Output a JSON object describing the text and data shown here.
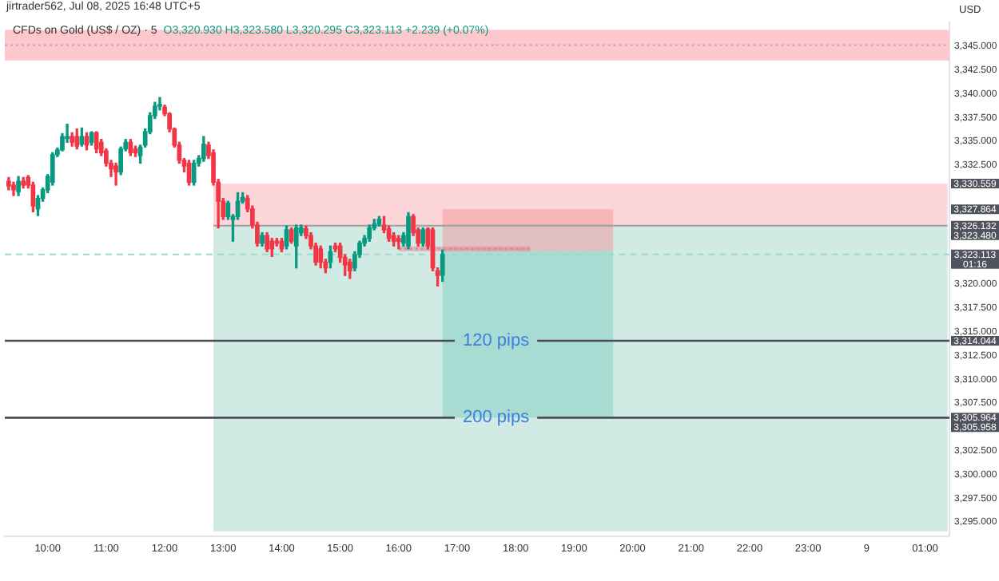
{
  "chart_data": {
    "type": "candlestick",
    "title": "CFDs on Gold (US$ / OZ) · 5",
    "subtitle": "jirtrader562, Jul 08, 2025 16:48 UTC+5",
    "ylabel": "USD",
    "annotations": [
      "O3,320.930 H3,323.580 L3,320.295 C3,323.113 +2.239 (+0.07%)",
      {
        "text": "3,330.559",
        "x": "2025-07-09T01:23",
        "y": 3330.559
      },
      {
        "text": "3,327.864",
        "x": "2025-07-09T01:25",
        "y": 3327.864
      },
      {
        "text": "3,326.132",
        "x": "2025-07-09T01:23",
        "y": 3326.132
      },
      "3,323.480",
      {
        "text": "3,323.113",
        "x": "2025-07-09T01:25",
        "y": 3323.113
      },
      "01:16",
      {
        "text": "3,314.044",
        "x": "2025-07-09T01:25",
        "y": 3314.044
      },
      {
        "text": "3,305.964",
        "x": "2025-07-09T01:25",
        "y": 3305.964
      },
      "3,305.958"
    ],
    "x": [
      "2025-07-08T09:20",
      "2025-07-08T09:25",
      "2025-07-08T09:30",
      "2025-07-08T09:35",
      "2025-07-08T09:40",
      "2025-07-08T09:45",
      "2025-07-08T09:50",
      "2025-07-08T09:55",
      "2025-07-08T10:00",
      "2025-07-08T10:05",
      "2025-07-08T10:10",
      "2025-07-08T10:15",
      "2025-07-08T10:20",
      "2025-07-08T10:25",
      "2025-07-08T10:30",
      "2025-07-08T10:35",
      "2025-07-08T10:40",
      "2025-07-08T10:45",
      "2025-07-08T10:50",
      "2025-07-08T10:55",
      "2025-07-08T11:00",
      "2025-07-08T11:05",
      "2025-07-08T11:10",
      "2025-07-08T11:15",
      "2025-07-08T11:20",
      "2025-07-08T11:25",
      "2025-07-08T11:30",
      "2025-07-08T11:35",
      "2025-07-08T11:40",
      "2025-07-08T11:45",
      "2025-07-08T11:50",
      "2025-07-08T11:55",
      "2025-07-08T12:00",
      "2025-07-08T12:05",
      "2025-07-08T12:10",
      "2025-07-08T12:15",
      "2025-07-08T12:20",
      "2025-07-08T12:25",
      "2025-07-08T12:30",
      "2025-07-08T12:35",
      "2025-07-08T12:40",
      "2025-07-08T12:45",
      "2025-07-08T12:50",
      "2025-07-08T12:55",
      "2025-07-08T13:00",
      "2025-07-08T13:05",
      "2025-07-08T13:10",
      "2025-07-08T13:15",
      "2025-07-08T13:20",
      "2025-07-08T13:25",
      "2025-07-08T13:30",
      "2025-07-08T13:35",
      "2025-07-08T13:40",
      "2025-07-08T13:45",
      "2025-07-08T13:50",
      "2025-07-08T13:55",
      "2025-07-08T14:00",
      "2025-07-08T14:05",
      "2025-07-08T14:10",
      "2025-07-08T14:15",
      "2025-07-08T14:20",
      "2025-07-08T14:25",
      "2025-07-08T14:30",
      "2025-07-08T14:35",
      "2025-07-08T14:40",
      "2025-07-08T14:45",
      "2025-07-08T14:50",
      "2025-07-08T14:55",
      "2025-07-08T15:00",
      "2025-07-08T15:05",
      "2025-07-08T15:10",
      "2025-07-08T15:15",
      "2025-07-08T15:20",
      "2025-07-08T15:25",
      "2025-07-08T15:30",
      "2025-07-08T15:35",
      "2025-07-08T15:40",
      "2025-07-08T15:45",
      "2025-07-08T15:50",
      "2025-07-08T15:55",
      "2025-07-08T16:00",
      "2025-07-08T16:05",
      "2025-07-08T16:10",
      "2025-07-08T16:15",
      "2025-07-08T16:20",
      "2025-07-08T16:25",
      "2025-07-08T16:30",
      "2025-07-08T16:35",
      "2025-07-08T16:40",
      "2025-07-08T16:45"
    ],
    "ohlc": [
      [
        3330.8,
        3331.2,
        3329.9,
        3330.3
      ],
      [
        3330.4,
        3330.7,
        3329.3,
        3329.9
      ],
      [
        3329.7,
        3331.3,
        3329.3,
        3330.8
      ],
      [
        3330.8,
        3331.2,
        3330.1,
        3330.4
      ],
      [
        3331.2,
        3331.4,
        3330.1,
        3330.4
      ],
      [
        3330.4,
        3330.7,
        3327.6,
        3328.2
      ],
      [
        3327.9,
        3329.3,
        3327.2,
        3329.0
      ],
      [
        3329.0,
        3330.1,
        3328.7,
        3329.9
      ],
      [
        3329.9,
        3331.5,
        3329.6,
        3331.3
      ],
      [
        3330.7,
        3333.8,
        3330.4,
        3333.6
      ],
      [
        3333.6,
        3334.3,
        3333.4,
        3334.1
      ],
      [
        3334.1,
        3335.8,
        3334.0,
        3335.5
      ],
      [
        3335.3,
        3336.8,
        3334.9,
        3335.5
      ],
      [
        3335.5,
        3335.9,
        3334.5,
        3334.9
      ],
      [
        3335.5,
        3336.3,
        3334.2,
        3334.5
      ],
      [
        3334.7,
        3336.4,
        3334.5,
        3335.5
      ],
      [
        3335.5,
        3335.9,
        3334.1,
        3334.6
      ],
      [
        3334.9,
        3336.0,
        3334.6,
        3335.9
      ],
      [
        3335.9,
        3336.0,
        3333.8,
        3334.2
      ],
      [
        3334.9,
        3335.2,
        3333.5,
        3333.8
      ],
      [
        3334.0,
        3334.2,
        3332.4,
        3332.7
      ],
      [
        3332.7,
        3333.0,
        3331.3,
        3332.1
      ],
      [
        3332.4,
        3332.7,
        3330.4,
        3331.8
      ],
      [
        3331.8,
        3334.4,
        3331.5,
        3334.2
      ],
      [
        3334.2,
        3335.2,
        3334.0,
        3334.9
      ],
      [
        3334.9,
        3335.2,
        3333.5,
        3333.8
      ],
      [
        3334.2,
        3334.5,
        3333.4,
        3333.8
      ],
      [
        3333.5,
        3334.6,
        3332.7,
        3334.4
      ],
      [
        3334.6,
        3336.3,
        3334.4,
        3336.0
      ],
      [
        3336.0,
        3338.0,
        3335.8,
        3337.7
      ],
      [
        3337.7,
        3339.1,
        3337.4,
        3338.7
      ],
      [
        3338.7,
        3339.6,
        3338.3,
        3338.8
      ],
      [
        3338.6,
        3338.8,
        3337.7,
        3337.9
      ],
      [
        3337.9,
        3338.0,
        3336.0,
        3336.3
      ],
      [
        3336.3,
        3336.4,
        3334.4,
        3334.6
      ],
      [
        3334.6,
        3334.9,
        3332.7,
        3333.0
      ],
      [
        3333.0,
        3333.2,
        3331.8,
        3332.4
      ],
      [
        3332.7,
        3333.0,
        3330.4,
        3330.7
      ],
      [
        3330.7,
        3333.0,
        3330.4,
        3332.7
      ],
      [
        3332.7,
        3333.5,
        3332.4,
        3333.2
      ],
      [
        3333.2,
        3335.5,
        3332.9,
        3334.7
      ],
      [
        3334.6,
        3334.9,
        3333.2,
        3333.5
      ],
      [
        3333.8,
        3334.1,
        3330.4,
        3330.7
      ],
      [
        3330.7,
        3331.0,
        3325.9,
        3328.7
      ],
      [
        3328.7,
        3329.0,
        3326.8,
        3327.1
      ],
      [
        3327.1,
        3328.7,
        3326.8,
        3328.5
      ],
      [
        3326.8,
        3327.3,
        3324.5,
        3327.1
      ],
      [
        3327.1,
        3329.6,
        3326.8,
        3328.7
      ],
      [
        3328.7,
        3329.6,
        3328.5,
        3329.1
      ],
      [
        3329.0,
        3329.3,
        3327.6,
        3327.9
      ],
      [
        3327.9,
        3328.2,
        3325.9,
        3326.2
      ],
      [
        3326.2,
        3326.5,
        3324.0,
        3324.3
      ],
      [
        3324.3,
        3325.4,
        3324.0,
        3325.1
      ],
      [
        3325.1,
        3325.4,
        3323.4,
        3323.7
      ],
      [
        3324.5,
        3324.8,
        3322.9,
        3323.7
      ],
      [
        3324.5,
        3324.8,
        3324.0,
        3324.3
      ],
      [
        3324.5,
        3324.8,
        3323.4,
        3323.7
      ],
      [
        3324.0,
        3326.1,
        3323.7,
        3325.7
      ],
      [
        3325.7,
        3325.9,
        3324.3,
        3324.5
      ],
      [
        3324.0,
        3326.2,
        3321.7,
        3325.9
      ],
      [
        3325.4,
        3326.2,
        3325.1,
        3325.9
      ],
      [
        3325.8,
        3326.1,
        3324.8,
        3325.1
      ],
      [
        3325.1,
        3325.4,
        3323.7,
        3324.0
      ],
      [
        3324.0,
        3324.3,
        3322.0,
        3322.3
      ],
      [
        3323.7,
        3324.0,
        3321.7,
        3322.3
      ],
      [
        3322.3,
        3322.6,
        3321.2,
        3321.7
      ],
      [
        3322.3,
        3324.0,
        3321.7,
        3323.4
      ],
      [
        3324.0,
        3324.3,
        3323.4,
        3323.7
      ],
      [
        3324.0,
        3324.3,
        3322.3,
        3322.8
      ],
      [
        3322.8,
        3323.1,
        3320.9,
        3322.0
      ],
      [
        3322.3,
        3322.6,
        3320.6,
        3321.4
      ],
      [
        3321.7,
        3323.4,
        3321.4,
        3323.1
      ],
      [
        3323.1,
        3324.5,
        3322.8,
        3324.3
      ],
      [
        3324.3,
        3325.1,
        3324.0,
        3324.8
      ],
      [
        3324.8,
        3326.2,
        3324.5,
        3325.9
      ],
      [
        3325.9,
        3326.8,
        3325.7,
        3326.3
      ],
      [
        3326.3,
        3327.1,
        3326.1,
        3326.8
      ],
      [
        3326.2,
        3327.1,
        3325.4,
        3325.7
      ],
      [
        3325.8,
        3326.1,
        3324.5,
        3324.8
      ],
      [
        3325.1,
        3325.4,
        3324.0,
        3324.5
      ],
      [
        3324.8,
        3325.1,
        3323.7,
        3324.5
      ],
      [
        3324.3,
        3325.4,
        3324.0,
        3325.1
      ],
      [
        3324.0,
        3327.5,
        3323.7,
        3327.1
      ],
      [
        3327.1,
        3327.3,
        3325.1,
        3325.4
      ],
      [
        3325.7,
        3325.9,
        3324.0,
        3324.3
      ],
      [
        3324.3,
        3325.9,
        3324.0,
        3325.7
      ],
      [
        3325.8,
        3325.9,
        3323.7,
        3324.0
      ],
      [
        3325.7,
        3325.9,
        3321.4,
        3321.7
      ],
      [
        3321.4,
        3321.7,
        3319.8,
        3320.9
      ],
      [
        3320.93,
        3323.58,
        3320.295,
        3323.113
      ]
    ],
    "series": [
      {
        "type": "line",
        "color": "#f9adb3",
        "x": [
          "2025-07-08T12:50",
          "2025-07-09T01:23"
        ],
        "values": [
          null,
          null
        ],
        "lower": [
          3326.132,
          3326.132
        ],
        "upper": [
          3330.559,
          3330.559
        ]
      },
      {
        "type": "line",
        "color": "#a3d7c9",
        "x": [
          "2025-07-08T12:50",
          "2025-07-09T01:23"
        ],
        "values": [
          null,
          null
        ],
        "lower": [
          3294.0,
          3294.0
        ],
        "upper": [
          3326.132,
          3326.132
        ]
      },
      {
        "type": "line",
        "color": "#9e9e9e",
        "x": [
          "2025-07-08T12:50",
          "2025-07-09T01:23"
        ],
        "values": [
          3326.132,
          3326.132
        ]
      },
      {
        "type": "line",
        "color": "#f2949b",
        "x": [
          "2025-07-08T16:45",
          "2025-07-08T19:40"
        ],
        "values": [
          null,
          null
        ],
        "lower": [
          3323.48,
          3323.48
        ],
        "upper": [
          3327.864,
          3327.864
        ]
      },
      {
        "type": "line",
        "color": "#7fcbbe",
        "x": [
          "2025-07-08T16:45",
          "2025-07-08T19:40"
        ],
        "values": [
          null,
          null
        ],
        "lower": [
          3305.964,
          3305.964
        ],
        "upper": [
          3323.48,
          3323.48
        ]
      },
      {
        "type": "line",
        "color": "#e57f92",
        "line_style": "dotted",
        "x": [
          "2025-07-08T16:00",
          "2025-07-08T18:15"
        ],
        "values": [
          3323.7,
          3323.7
        ],
        "lower": [
          3323.45,
          3323.45
        ],
        "upper": [
          3323.95,
          3323.95
        ]
      }
    ],
    "bands": [
      {
        "axis": "y",
        "from": 3343.5,
        "to": 3346.7,
        "color": "#fcc8cc"
      }
    ],
    "ref_lines": [
      {
        "axis": "y",
        "value": 3345.1,
        "color": "#e88fc0",
        "line_style": "dotted"
      },
      {
        "axis": "y",
        "value": 3323.113,
        "color": "#9fd8cc",
        "line_style": "dashed"
      },
      {
        "axis": "y",
        "value": 3314.044,
        "label": "120 pips",
        "color": "#4a4d57"
      },
      {
        "axis": "y",
        "value": 3305.964,
        "label": "200 pips",
        "color": "#4a4d57"
      }
    ],
    "xlim": [
      "2025-07-08T09:16",
      "2025-07-09T01:25"
    ],
    "xticks": [
      {
        "value": "2025-07-08T10:00",
        "label": "10:00"
      },
      {
        "value": "2025-07-08T11:00",
        "label": "11:00"
      },
      {
        "value": "2025-07-08T12:00",
        "label": "12:00"
      },
      {
        "value": "2025-07-08T13:00",
        "label": "13:00"
      },
      {
        "value": "2025-07-08T14:00",
        "label": "14:00"
      },
      {
        "value": "2025-07-08T15:00",
        "label": "15:00"
      },
      {
        "value": "2025-07-08T16:00",
        "label": "16:00"
      },
      {
        "value": "2025-07-08T17:00",
        "label": "17:00"
      },
      {
        "value": "2025-07-08T18:00",
        "label": "18:00"
      },
      {
        "value": "2025-07-08T19:00",
        "label": "19:00"
      },
      {
        "value": "2025-07-08T20:00",
        "label": "20:00"
      },
      {
        "value": "2025-07-08T21:00",
        "label": "21:00"
      },
      {
        "value": "2025-07-08T22:00",
        "label": "22:00"
      },
      {
        "value": "2025-07-08T23:00",
        "label": "23:00"
      },
      {
        "value": "2025-07-09T00:00",
        "label": "9"
      },
      {
        "value": "2025-07-09T01:00",
        "label": "01:00"
      }
    ],
    "ylim": [
      3293.5,
      3347.5
    ],
    "yticks": [
      {
        "value": 3295,
        "label": "3,295.000"
      },
      {
        "value": 3297.5,
        "label": "3,297.500"
      },
      {
        "value": 3300,
        "label": "3,300.000"
      },
      {
        "value": 3302.5,
        "label": "3,302.500"
      },
      {
        "value": 3307.5,
        "label": "3,307.500"
      },
      {
        "value": 3310,
        "label": "3,310.000"
      },
      {
        "value": 3312.5,
        "label": "3,312.500"
      },
      {
        "value": 3315,
        "label": "3,315.000"
      },
      {
        "value": 3317.5,
        "label": "3,317.500"
      },
      {
        "value": 3320,
        "label": "3,320.000"
      },
      {
        "value": 3332.5,
        "label": "3,332.500"
      },
      {
        "value": 3335,
        "label": "3,335.000"
      },
      {
        "value": 3337.5,
        "label": "3,337.500"
      },
      {
        "value": 3340,
        "label": "3,340.000"
      },
      {
        "value": 3342.5,
        "label": "3,342.500"
      },
      {
        "value": 3345,
        "label": "3,345.000"
      }
    ],
    "legend": false
  }
}
